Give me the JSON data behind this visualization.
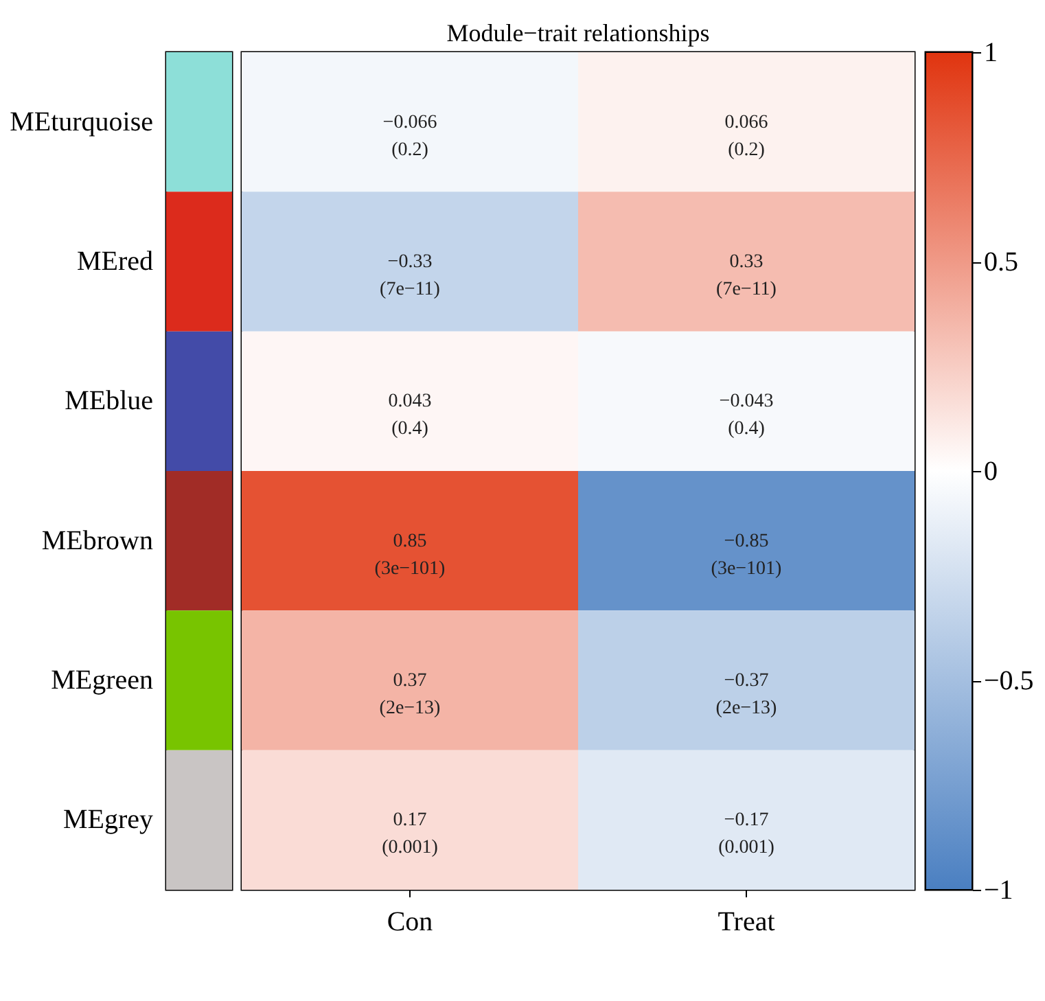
{
  "chart_data": {
    "type": "heatmap",
    "title": "Module−trait relationships",
    "categories": [
      "Con",
      "Treat"
    ],
    "y_categories": [
      "MEturquoise",
      "MEred",
      "MEblue",
      "MEbrown",
      "MEgreen",
      "MEgrey"
    ],
    "colors": [
      "#8ddfd8",
      "#dc2b1c",
      "#434ba8",
      "#a12c26",
      "#78c400",
      "#c9c5c4"
    ],
    "cells": [
      [
        -0.066,
        0.066
      ],
      [
        -0.33,
        0.33
      ],
      [
        0.043,
        -0.043
      ],
      [
        0.85,
        -0.85
      ],
      [
        0.37,
        -0.37
      ],
      [
        0.17,
        -0.17
      ]
    ],
    "cell_labels": [
      [
        "−0.066\n(0.2)",
        "0.066\n(0.2)"
      ],
      [
        "−0.33\n(7e−11)",
        "0.33\n(7e−11)"
      ],
      [
        "0.043\n(0.4)",
        "−0.043\n(0.4)"
      ],
      [
        "0.85\n(3e−101)",
        "−0.85\n(3e−101)"
      ],
      [
        "0.37\n(2e−13)",
        "−0.37\n(2e−13)"
      ],
      [
        "0.17\n(0.001)",
        "−0.17\n(0.001)"
      ]
    ],
    "clim": [
      -1,
      1
    ],
    "cticks": [
      -1,
      -0.5,
      0,
      0.5,
      1
    ]
  }
}
